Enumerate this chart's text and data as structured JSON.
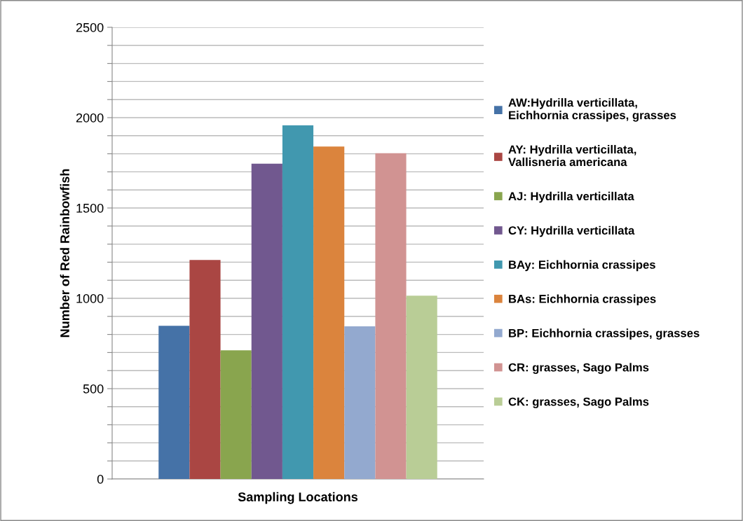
{
  "chart_data": {
    "type": "bar",
    "ylabel": "Number of Red Rainbowfish",
    "xlabel": "Sampling Locations",
    "categories": [
      null
    ],
    "series": [
      {
        "name": "AW:Hydrilla verticillata,\nEichhornia crassipes, grasses",
        "color": "#4572a7",
        "values": [
          848
        ]
      },
      {
        "name": "AY: Hydrilla verticillata,\nVallisneria americana",
        "color": "#aa4643",
        "values": [
          1212
        ]
      },
      {
        "name": "AJ: Hydrilla verticillata",
        "color": "#89a54e",
        "values": [
          712
        ]
      },
      {
        "name": "CY: Hydrilla verticillata",
        "color": "#71588f",
        "values": [
          1745
        ]
      },
      {
        "name": "BAy: Eichhornia crassipes",
        "color": "#4198af",
        "values": [
          1957
        ]
      },
      {
        "name": "BAs: Eichhornia crassipes",
        "color": "#db843d",
        "values": [
          1840
        ]
      },
      {
        "name": "BP: Eichhornia crassipes, grasses",
        "color": "#93a9cf",
        "values": [
          845
        ]
      },
      {
        "name": "CR: grasses, Sago Palms",
        "color": "#d19392",
        "values": [
          1803
        ]
      },
      {
        "name": "CK: grasses, Sago Palms",
        "color": "#b9cd96",
        "values": [
          1015
        ]
      }
    ],
    "ylim": [
      0,
      2500
    ],
    "yticks": [
      0,
      {
        "value": 100,
        "label": null
      },
      {
        "value": 200,
        "label": null
      },
      {
        "value": 300,
        "label": null
      },
      {
        "value": 400,
        "label": null
      },
      500,
      {
        "value": 600,
        "label": null
      },
      {
        "value": 700,
        "label": null
      },
      {
        "value": 800,
        "label": null
      },
      {
        "value": 900,
        "label": null
      },
      1000,
      {
        "value": 1100,
        "label": null
      },
      {
        "value": 1200,
        "label": null
      },
      {
        "value": 1300,
        "label": null
      },
      {
        "value": 1400,
        "label": null
      },
      1500,
      {
        "value": 1600,
        "label": null
      },
      {
        "value": 1700,
        "label": null
      },
      {
        "value": 1800,
        "label": null
      },
      {
        "value": 1900,
        "label": null
      },
      2000,
      {
        "value": 2100,
        "label": null
      },
      {
        "value": 2200,
        "label": null
      },
      {
        "value": 2300,
        "label": null
      },
      {
        "value": 2400,
        "label": null
      },
      2500
    ],
    "grid": "y",
    "legend": "right"
  }
}
